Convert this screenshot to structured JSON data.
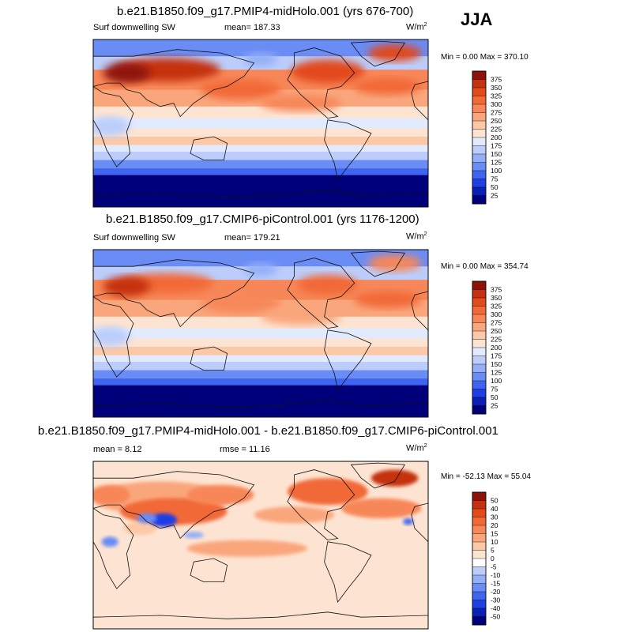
{
  "season": "JJA",
  "colors": {
    "positive_scale": [
      "#00007a",
      "#0a1fb4",
      "#1e3ee6",
      "#3f64f0",
      "#6a8cf5",
      "#93aff8",
      "#bccdfb",
      "#e2ebfd",
      "#fde4d2",
      "#fcc8a6",
      "#faa67c",
      "#f78758",
      "#f26937",
      "#e24a1a",
      "#c53010",
      "#8f1208"
    ],
    "diff_scale": [
      "#00007a",
      "#0a1fb4",
      "#1e3ee6",
      "#3f64f0",
      "#6a8cf5",
      "#93aff8",
      "#bccdfb",
      "#ffffff",
      "#fde4d2",
      "#fcc8a6",
      "#faa67c",
      "#f78758",
      "#f26937",
      "#e24a1a",
      "#c53010",
      "#8f1208"
    ]
  },
  "chart_data": [
    {
      "type": "heatmap",
      "title": "b.e21.B1850.f09_g17.PMIP4-midHolo.001 (yrs 676-700)",
      "left_label": "Surf downwelling SW",
      "stat_text": "mean= 187.33",
      "units_base": "W/m",
      "units_exp": "2",
      "minmax": "Min =   0.00 Max = 370.10",
      "colorbar_labels": [
        "375",
        "350",
        "325",
        "300",
        "275",
        "250",
        "225",
        "200",
        "175",
        "150",
        "125",
        "100",
        "75",
        "50",
        "25"
      ]
    },
    {
      "type": "heatmap",
      "title": "b.e21.B1850.f09_g17.CMIP6-piControl.001 (yrs 1176-1200)",
      "left_label": "Surf downwelling SW",
      "stat_text": "mean= 179.21",
      "units_base": "W/m",
      "units_exp": "2",
      "minmax": "Min =   0.00 Max = 354.74",
      "colorbar_labels": [
        "375",
        "350",
        "325",
        "300",
        "275",
        "250",
        "225",
        "200",
        "175",
        "150",
        "125",
        "100",
        "75",
        "50",
        "25"
      ]
    },
    {
      "type": "heatmap",
      "title": "b.e21.B1850.f09_g17.PMIP4-midHolo.001 - b.e21.B1850.f09_g17.CMIP6-piControl.001",
      "left_label": "mean =   8.12",
      "stat_text": "rmse =  11.16",
      "units_base": "W/m",
      "units_exp": "2",
      "minmax": "Min = -52.13 Max =  55.04",
      "colorbar_labels": [
        "50",
        "40",
        "30",
        "20",
        "15",
        "10",
        "5",
        "0",
        "-5",
        "-10",
        "-15",
        "-20",
        "-30",
        "-40",
        "-50"
      ]
    }
  ]
}
